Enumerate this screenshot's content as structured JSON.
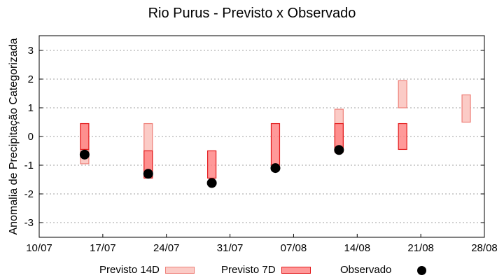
{
  "chart_data": {
    "type": "bar",
    "subtype": "floating-range-with-points",
    "title": "Rio Purus - Previsto x Observado",
    "xlabel": "",
    "ylabel": "Anomalia de Precipitação Categorizada",
    "ylim": [
      -3.5,
      3.5
    ],
    "yticks": [
      -3,
      -2,
      -1,
      0,
      1,
      2,
      3
    ],
    "xticks": [
      "10/07",
      "17/07",
      "24/07",
      "31/07",
      "07/08",
      "14/08",
      "21/08",
      "28/08"
    ],
    "grid": "horizontal dashed",
    "legend_position": "bottom",
    "categories": [
      "15/07",
      "22/07",
      "29/07",
      "05/08",
      "12/08",
      "19/08",
      "26/08"
    ],
    "series": [
      {
        "name": "Previsto 14D",
        "color": "#fbcbc6",
        "edge": "#ee7f78",
        "ranges": [
          [
            -0.95,
            0.45
          ],
          [
            -1.4,
            0.45
          ],
          null,
          null,
          [
            -0.55,
            0.95
          ],
          [
            1.0,
            1.95
          ],
          [
            0.5,
            1.45
          ]
        ]
      },
      {
        "name": "Previsto 7D",
        "color": "#ff7f7f",
        "edge": "#e31a1c",
        "ranges": [
          [
            -0.45,
            0.45
          ],
          [
            -1.45,
            -0.5
          ],
          [
            -1.45,
            -0.5
          ],
          [
            -1.0,
            0.45
          ],
          [
            -0.5,
            0.45
          ],
          [
            -0.45,
            0.45
          ],
          null
        ]
      },
      {
        "name": "Observado",
        "color": "#000000",
        "values": [
          -0.63,
          -1.3,
          -1.62,
          -1.1,
          -0.47,
          null,
          null
        ]
      }
    ]
  },
  "legend": {
    "p14": "Previsto 14D",
    "p7": "Previsto 7D",
    "obs": "Observado"
  }
}
